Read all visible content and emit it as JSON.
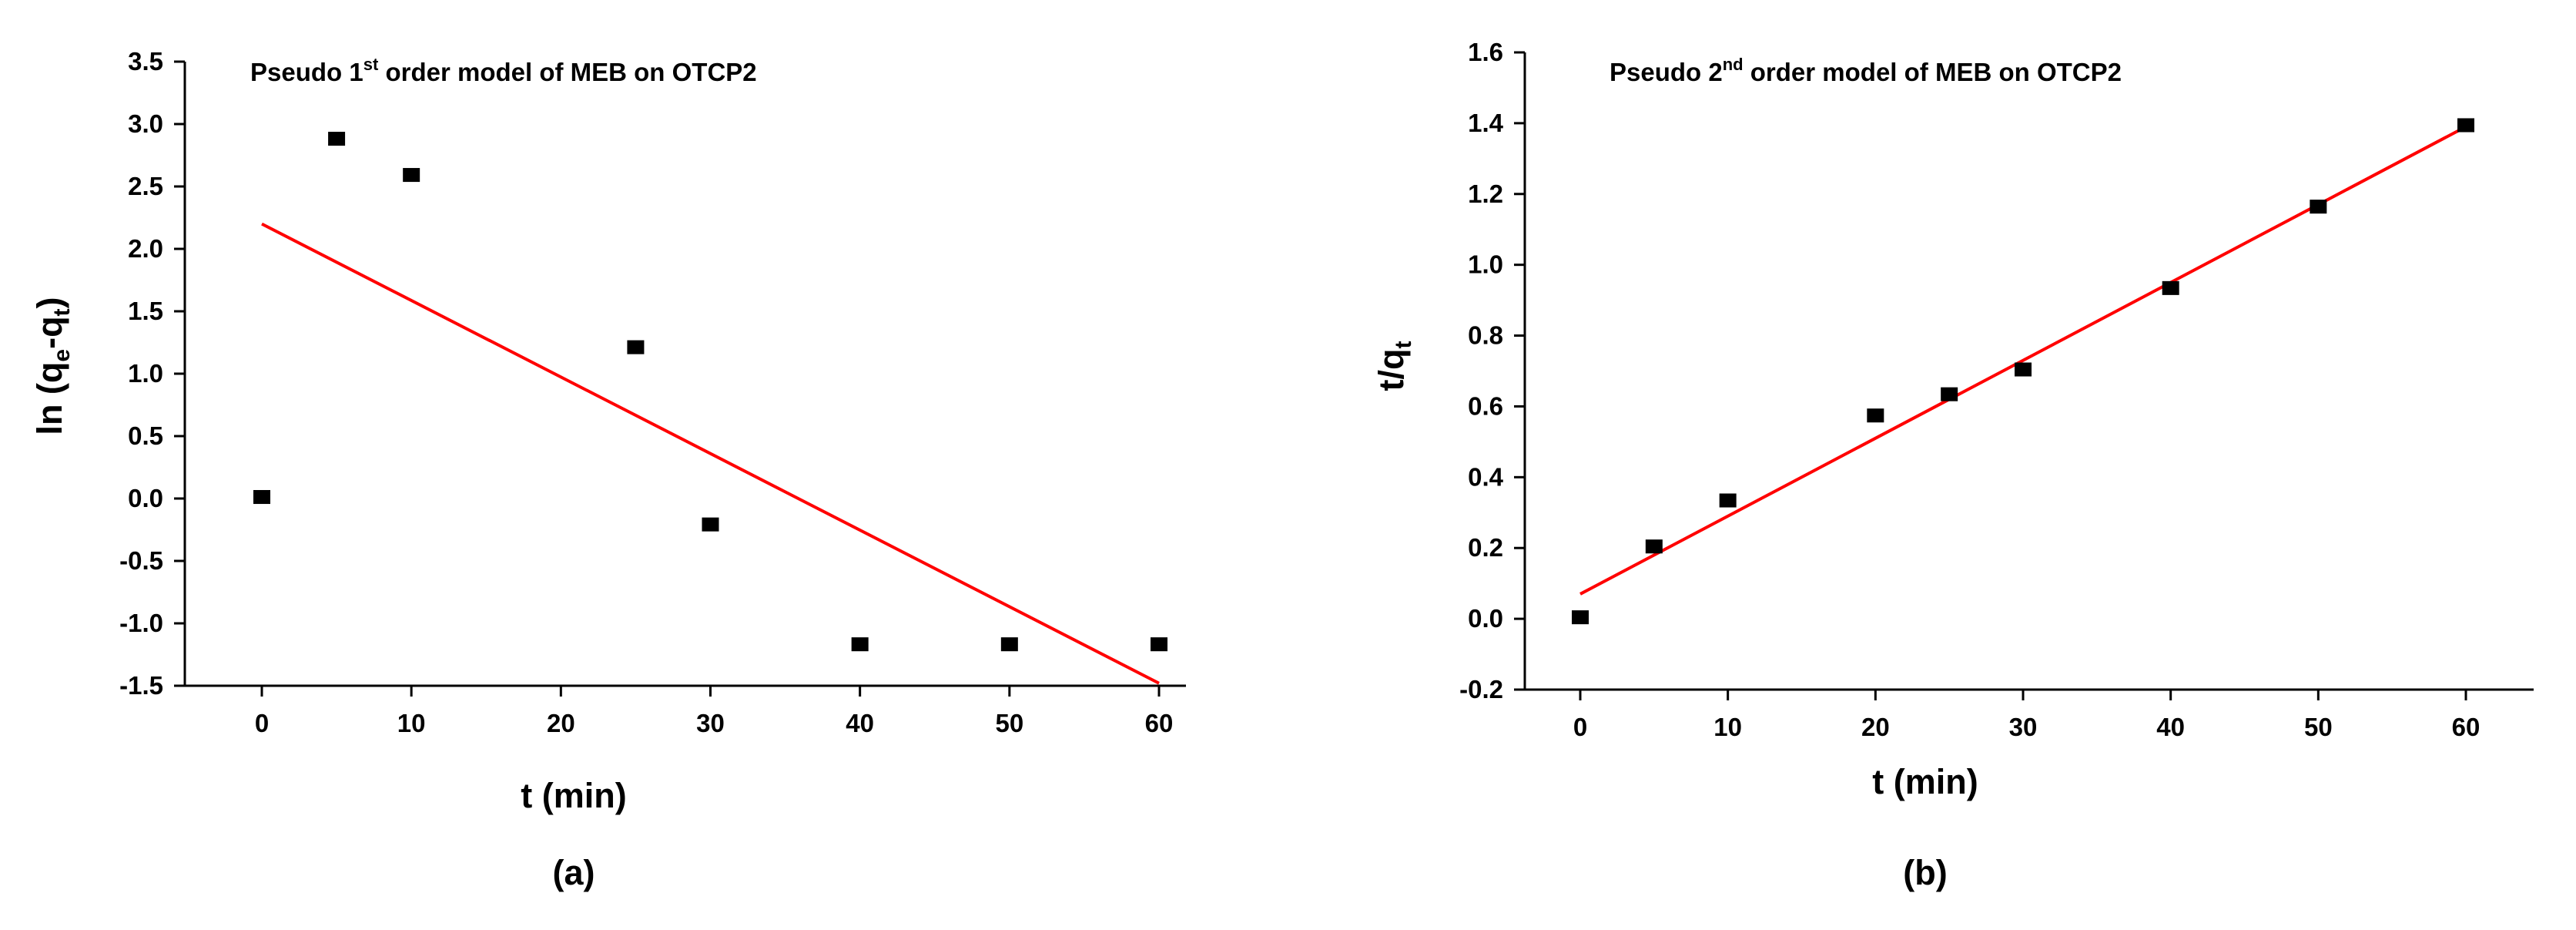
{
  "chart_data": [
    {
      "type": "scatter",
      "panel_label": "(a)",
      "title": {
        "pre": "Pseudo 1",
        "sup": "st",
        "post": " order model of MEB on OTCP2"
      },
      "xlabel": "t (min)",
      "ylabel": {
        "pre": "ln (q",
        "sub1": "e",
        "mid": "-q",
        "sub2": "t",
        "post": ")"
      },
      "xlim": [
        -5,
        62
      ],
      "ylim": [
        -1.5,
        3.5
      ],
      "xticks": [
        0,
        10,
        20,
        30,
        40,
        50,
        60
      ],
      "yticks": [
        3.5,
        3.0,
        2.5,
        2.0,
        1.5,
        1.0,
        0.5,
        0.0,
        -0.5,
        -1.0,
        -1.5
      ],
      "ytick_labels": [
        "3.5",
        "3.0",
        "2.5",
        "2.0",
        "1.5",
        "1.0",
        "0.5",
        "0.0",
        "-0.5",
        "-1.0",
        "-1.5"
      ],
      "grid": false,
      "points": {
        "x": [
          0,
          5,
          10,
          25,
          30,
          40,
          50,
          60
        ],
        "y": [
          0.0,
          2.87,
          2.58,
          1.2,
          -0.22,
          -1.18,
          -1.18,
          -1.18
        ]
      },
      "fit_line": {
        "x": [
          0,
          60
        ],
        "y": [
          2.2,
          -1.48
        ],
        "color": "#ff0000"
      }
    },
    {
      "type": "scatter",
      "panel_label": "(b)",
      "title": {
        "pre": "Pseudo 2",
        "sup": "nd",
        "post": " order model of MEB on OTCP2"
      },
      "xlabel": "t (min)",
      "ylabel": {
        "pre": "t/q",
        "sub1": "t",
        "mid": "",
        "sub2": "",
        "post": ""
      },
      "xlim": [
        -5,
        62
      ],
      "ylim": [
        -0.2,
        1.6
      ],
      "xticks": [
        0,
        10,
        20,
        30,
        40,
        50,
        60
      ],
      "yticks": [
        1.6,
        1.4,
        1.2,
        1.0,
        0.8,
        0.6,
        0.4,
        0.2,
        0.0,
        -0.2
      ],
      "ytick_labels": [
        "1.6",
        "1.4",
        "1.2",
        "1.0",
        "0.8",
        "0.6",
        "0.4",
        "0.2",
        "0.0",
        "-0.2"
      ],
      "grid": false,
      "points": {
        "x": [
          0,
          5,
          10,
          20,
          25,
          30,
          40,
          50,
          60
        ],
        "y": [
          0.0,
          0.2,
          0.33,
          0.57,
          0.63,
          0.7,
          0.93,
          1.16,
          1.39
        ]
      },
      "fit_line": {
        "x": [
          0,
          60
        ],
        "y": [
          0.07,
          1.39
        ],
        "color": "#ff0000"
      }
    }
  ]
}
